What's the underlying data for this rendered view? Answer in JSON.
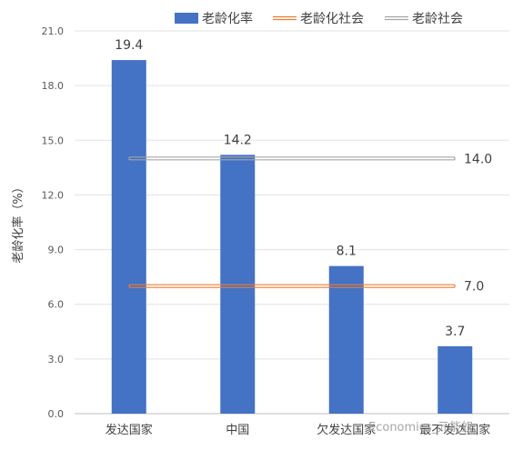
{
  "chart_data": {
    "type": "bar",
    "categories": [
      "发达国家",
      "中国",
      "欠发达国家",
      "最不发达国家"
    ],
    "series": [
      {
        "name": "老龄化率",
        "type": "bar",
        "values": [
          19.4,
          14.2,
          8.1,
          3.7
        ],
        "color": "#4472C4"
      },
      {
        "name": "老龄化社会",
        "type": "line",
        "values": [
          7.0,
          7.0,
          7.0,
          7.0
        ],
        "end_label": "7.0",
        "color": "#ED7D31"
      },
      {
        "name": "老龄社会",
        "type": "line",
        "values": [
          14.0,
          14.0,
          14.0,
          14.0
        ],
        "end_label": "14.0",
        "color": "#A5A5A5"
      }
    ],
    "ylabel": "老龄化率（%）",
    "ylim": [
      0,
      21
    ],
    "yticks": [
      "0.0",
      "3.0",
      "6.0",
      "9.0",
      "12.0",
      "15.0",
      "18.0",
      "21.0"
    ],
    "data_labels": [
      "19.4",
      "14.2",
      "8.1",
      "3.7"
    ],
    "legend_position": "top",
    "grid": true,
    "watermark": "Economics_元能奴"
  }
}
